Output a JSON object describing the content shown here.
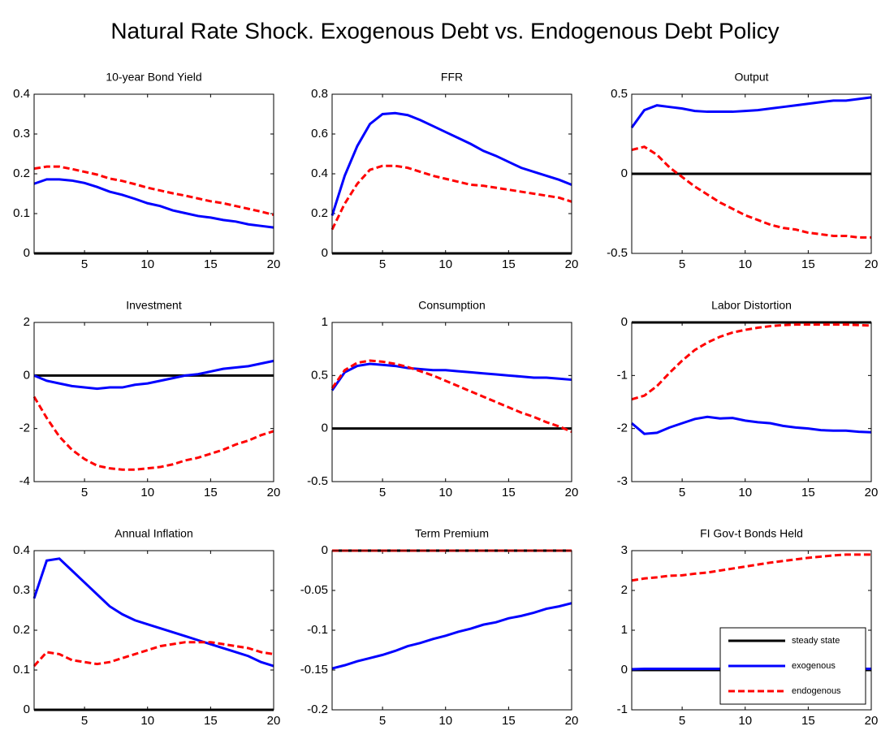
{
  "title": "Natural Rate Shock. Exogenous Debt vs. Endogenous Debt Policy",
  "chart_data": [
    {
      "type": "line",
      "title": "10-year Bond Yield",
      "x": [
        1,
        2,
        3,
        4,
        5,
        6,
        7,
        8,
        9,
        10,
        11,
        12,
        13,
        14,
        15,
        16,
        17,
        18,
        19,
        20
      ],
      "xlim": [
        1,
        20
      ],
      "xticks": [
        5,
        10,
        15,
        20
      ],
      "ylim": [
        0,
        0.4
      ],
      "yticks": [
        0,
        0.1,
        0.2,
        0.3,
        0.4
      ],
      "series": [
        {
          "color": "#000000",
          "style": "solid",
          "values": [
            0,
            0,
            0,
            0,
            0,
            0,
            0,
            0,
            0,
            0,
            0,
            0,
            0,
            0,
            0,
            0,
            0,
            0,
            0,
            0
          ]
        },
        {
          "color": "#0000ff",
          "style": "solid",
          "values": [
            0.175,
            0.186,
            0.186,
            0.183,
            0.177,
            0.167,
            0.155,
            0.147,
            0.137,
            0.126,
            0.119,
            0.108,
            0.101,
            0.094,
            0.09,
            0.084,
            0.08,
            0.073,
            0.069,
            0.065
          ]
        },
        {
          "color": "#ff0000",
          "style": "dashed",
          "values": [
            0.213,
            0.218,
            0.218,
            0.212,
            0.205,
            0.198,
            0.188,
            0.182,
            0.174,
            0.165,
            0.158,
            0.151,
            0.145,
            0.138,
            0.131,
            0.126,
            0.119,
            0.112,
            0.105,
            0.097
          ]
        }
      ]
    },
    {
      "type": "line",
      "title": "FFR",
      "x": [
        1,
        2,
        3,
        4,
        5,
        6,
        7,
        8,
        9,
        10,
        11,
        12,
        13,
        14,
        15,
        16,
        17,
        18,
        19,
        20
      ],
      "xlim": [
        1,
        20
      ],
      "xticks": [
        5,
        10,
        15,
        20
      ],
      "ylim": [
        0,
        0.8
      ],
      "yticks": [
        0,
        0.2,
        0.4,
        0.6,
        0.8
      ],
      "series": [
        {
          "color": "#000000",
          "style": "solid",
          "values": [
            0,
            0,
            0,
            0,
            0,
            0,
            0,
            0,
            0,
            0,
            0,
            0,
            0,
            0,
            0,
            0,
            0,
            0,
            0,
            0
          ]
        },
        {
          "color": "#0000ff",
          "style": "solid",
          "values": [
            0.19,
            0.39,
            0.54,
            0.65,
            0.7,
            0.705,
            0.695,
            0.67,
            0.64,
            0.61,
            0.58,
            0.55,
            0.515,
            0.49,
            0.46,
            0.43,
            0.41,
            0.39,
            0.37,
            0.345
          ]
        },
        {
          "color": "#ff0000",
          "style": "dashed",
          "values": [
            0.12,
            0.25,
            0.35,
            0.42,
            0.44,
            0.44,
            0.43,
            0.41,
            0.39,
            0.375,
            0.36,
            0.345,
            0.34,
            0.33,
            0.32,
            0.31,
            0.3,
            0.29,
            0.28,
            0.26
          ]
        }
      ]
    },
    {
      "type": "line",
      "title": "Output",
      "x": [
        1,
        2,
        3,
        4,
        5,
        6,
        7,
        8,
        9,
        10,
        11,
        12,
        13,
        14,
        15,
        16,
        17,
        18,
        19,
        20
      ],
      "xlim": [
        1,
        20
      ],
      "xticks": [
        5,
        10,
        15,
        20
      ],
      "ylim": [
        -0.5,
        0.5
      ],
      "yticks": [
        -0.5,
        0,
        0.5
      ],
      "series": [
        {
          "color": "#000000",
          "style": "solid",
          "values": [
            0,
            0,
            0,
            0,
            0,
            0,
            0,
            0,
            0,
            0,
            0,
            0,
            0,
            0,
            0,
            0,
            0,
            0,
            0,
            0
          ]
        },
        {
          "color": "#0000ff",
          "style": "solid",
          "values": [
            0.29,
            0.4,
            0.43,
            0.42,
            0.41,
            0.395,
            0.39,
            0.39,
            0.39,
            0.395,
            0.4,
            0.41,
            0.42,
            0.43,
            0.44,
            0.45,
            0.46,
            0.46,
            0.47,
            0.48
          ]
        },
        {
          "color": "#ff0000",
          "style": "dashed",
          "values": [
            0.15,
            0.17,
            0.12,
            0.04,
            -0.02,
            -0.08,
            -0.13,
            -0.18,
            -0.22,
            -0.26,
            -0.29,
            -0.32,
            -0.34,
            -0.35,
            -0.37,
            -0.38,
            -0.39,
            -0.39,
            -0.4,
            -0.4
          ]
        }
      ]
    },
    {
      "type": "line",
      "title": "Investment",
      "x": [
        1,
        2,
        3,
        4,
        5,
        6,
        7,
        8,
        9,
        10,
        11,
        12,
        13,
        14,
        15,
        16,
        17,
        18,
        19,
        20
      ],
      "xlim": [
        1,
        20
      ],
      "xticks": [
        5,
        10,
        15,
        20
      ],
      "ylim": [
        -4,
        2
      ],
      "yticks": [
        -4,
        -2,
        0,
        2
      ],
      "series": [
        {
          "color": "#000000",
          "style": "solid",
          "values": [
            0,
            0,
            0,
            0,
            0,
            0,
            0,
            0,
            0,
            0,
            0,
            0,
            0,
            0,
            0,
            0,
            0,
            0,
            0,
            0
          ]
        },
        {
          "color": "#0000ff",
          "style": "solid",
          "values": [
            0,
            -0.2,
            -0.3,
            -0.4,
            -0.45,
            -0.5,
            -0.45,
            -0.45,
            -0.35,
            -0.3,
            -0.2,
            -0.1,
            0,
            0.05,
            0.15,
            0.25,
            0.3,
            0.35,
            0.45,
            0.55
          ]
        },
        {
          "color": "#ff0000",
          "style": "dashed",
          "values": [
            -0.8,
            -1.6,
            -2.3,
            -2.8,
            -3.15,
            -3.4,
            -3.5,
            -3.55,
            -3.55,
            -3.5,
            -3.45,
            -3.35,
            -3.2,
            -3.1,
            -2.95,
            -2.8,
            -2.6,
            -2.45,
            -2.25,
            -2.1
          ]
        }
      ]
    },
    {
      "type": "line",
      "title": "Consumption",
      "x": [
        1,
        2,
        3,
        4,
        5,
        6,
        7,
        8,
        9,
        10,
        11,
        12,
        13,
        14,
        15,
        16,
        17,
        18,
        19,
        20
      ],
      "xlim": [
        1,
        20
      ],
      "xticks": [
        5,
        10,
        15,
        20
      ],
      "ylim": [
        -0.5,
        1
      ],
      "yticks": [
        -0.5,
        0,
        0.5,
        1
      ],
      "series": [
        {
          "color": "#000000",
          "style": "solid",
          "values": [
            0,
            0,
            0,
            0,
            0,
            0,
            0,
            0,
            0,
            0,
            0,
            0,
            0,
            0,
            0,
            0,
            0,
            0,
            0,
            0
          ]
        },
        {
          "color": "#0000ff",
          "style": "solid",
          "values": [
            0.36,
            0.53,
            0.59,
            0.61,
            0.6,
            0.59,
            0.57,
            0.56,
            0.55,
            0.55,
            0.54,
            0.53,
            0.52,
            0.51,
            0.5,
            0.49,
            0.48,
            0.48,
            0.47,
            0.46
          ]
        },
        {
          "color": "#ff0000",
          "style": "dashed",
          "values": [
            0.38,
            0.55,
            0.62,
            0.64,
            0.63,
            0.61,
            0.58,
            0.54,
            0.5,
            0.45,
            0.4,
            0.35,
            0.3,
            0.25,
            0.2,
            0.15,
            0.11,
            0.06,
            0.02,
            -0.03
          ]
        }
      ]
    },
    {
      "type": "line",
      "title": "Labor Distortion",
      "x": [
        1,
        2,
        3,
        4,
        5,
        6,
        7,
        8,
        9,
        10,
        11,
        12,
        13,
        14,
        15,
        16,
        17,
        18,
        19,
        20
      ],
      "xlim": [
        1,
        20
      ],
      "xticks": [
        5,
        10,
        15,
        20
      ],
      "ylim": [
        -3,
        0
      ],
      "yticks": [
        -3,
        -2,
        -1,
        0
      ],
      "series": [
        {
          "color": "#000000",
          "style": "solid",
          "values": [
            0,
            0,
            0,
            0,
            0,
            0,
            0,
            0,
            0,
            0,
            0,
            0,
            0,
            0,
            0,
            0,
            0,
            0,
            0,
            0
          ]
        },
        {
          "color": "#0000ff",
          "style": "solid",
          "values": [
            -1.9,
            -2.1,
            -2.08,
            -1.98,
            -1.9,
            -1.82,
            -1.78,
            -1.81,
            -1.8,
            -1.85,
            -1.88,
            -1.9,
            -1.95,
            -1.98,
            -2.0,
            -2.03,
            -2.04,
            -2.04,
            -2.06,
            -2.07
          ]
        },
        {
          "color": "#ff0000",
          "style": "dashed",
          "values": [
            -1.45,
            -1.38,
            -1.2,
            -0.95,
            -0.72,
            -0.52,
            -0.38,
            -0.27,
            -0.19,
            -0.14,
            -0.1,
            -0.07,
            -0.05,
            -0.04,
            -0.04,
            -0.04,
            -0.04,
            -0.04,
            -0.05,
            -0.06
          ]
        }
      ]
    },
    {
      "type": "line",
      "title": "Annual Inflation",
      "x": [
        1,
        2,
        3,
        4,
        5,
        6,
        7,
        8,
        9,
        10,
        11,
        12,
        13,
        14,
        15,
        16,
        17,
        18,
        19,
        20
      ],
      "xlim": [
        1,
        20
      ],
      "xticks": [
        5,
        10,
        15,
        20
      ],
      "ylim": [
        0,
        0.4
      ],
      "yticks": [
        0,
        0.1,
        0.2,
        0.3,
        0.4
      ],
      "series": [
        {
          "color": "#000000",
          "style": "solid",
          "values": [
            0,
            0,
            0,
            0,
            0,
            0,
            0,
            0,
            0,
            0,
            0,
            0,
            0,
            0,
            0,
            0,
            0,
            0,
            0,
            0
          ]
        },
        {
          "color": "#0000ff",
          "style": "solid",
          "values": [
            0.28,
            0.375,
            0.38,
            0.35,
            0.32,
            0.29,
            0.26,
            0.24,
            0.225,
            0.215,
            0.205,
            0.195,
            0.185,
            0.175,
            0.165,
            0.155,
            0.145,
            0.135,
            0.12,
            0.11
          ]
        },
        {
          "color": "#ff0000",
          "style": "dashed",
          "values": [
            0.11,
            0.145,
            0.14,
            0.125,
            0.12,
            0.115,
            0.12,
            0.13,
            0.14,
            0.15,
            0.16,
            0.165,
            0.17,
            0.17,
            0.17,
            0.165,
            0.16,
            0.155,
            0.145,
            0.14
          ]
        }
      ]
    },
    {
      "type": "line",
      "title": "Term Premium",
      "x": [
        1,
        2,
        3,
        4,
        5,
        6,
        7,
        8,
        9,
        10,
        11,
        12,
        13,
        14,
        15,
        16,
        17,
        18,
        19,
        20
      ],
      "xlim": [
        1,
        20
      ],
      "xticks": [
        5,
        10,
        15,
        20
      ],
      "ylim": [
        -0.2,
        0
      ],
      "yticks": [
        -0.2,
        -0.15,
        -0.1,
        -0.05,
        0
      ],
      "series": [
        {
          "color": "#000000",
          "style": "solid",
          "values": [
            0,
            0,
            0,
            0,
            0,
            0,
            0,
            0,
            0,
            0,
            0,
            0,
            0,
            0,
            0,
            0,
            0,
            0,
            0,
            0
          ]
        },
        {
          "color": "#0000ff",
          "style": "solid",
          "values": [
            -0.148,
            -0.144,
            -0.139,
            -0.135,
            -0.131,
            -0.126,
            -0.12,
            -0.116,
            -0.111,
            -0.107,
            -0.102,
            -0.098,
            -0.093,
            -0.09,
            -0.085,
            -0.082,
            -0.078,
            -0.073,
            -0.07,
            -0.066
          ]
        },
        {
          "color": "#ff0000",
          "style": "dashed",
          "values": [
            0,
            0,
            0,
            0,
            0,
            0,
            0,
            0,
            0,
            0,
            0,
            0,
            0,
            0,
            0,
            0,
            0,
            0,
            0,
            0
          ]
        }
      ]
    },
    {
      "type": "line",
      "title": "FI Gov-t Bonds Held",
      "x": [
        1,
        2,
        3,
        4,
        5,
        6,
        7,
        8,
        9,
        10,
        11,
        12,
        13,
        14,
        15,
        16,
        17,
        18,
        19,
        20
      ],
      "xlim": [
        1,
        20
      ],
      "xticks": [
        5,
        10,
        15,
        20
      ],
      "ylim": [
        -1,
        3
      ],
      "yticks": [
        -1,
        0,
        1,
        2,
        3
      ],
      "legend": "lower right",
      "series": [
        {
          "name": "steady state",
          "color": "#000000",
          "style": "solid",
          "values": [
            0,
            0,
            0,
            0,
            0,
            0,
            0,
            0,
            0,
            0,
            0,
            0,
            0,
            0,
            0,
            0,
            0,
            0,
            0,
            0
          ]
        },
        {
          "name": "exogenous",
          "color": "#0000ff",
          "style": "solid",
          "values": [
            0.02,
            0.03,
            0.03,
            0.03,
            0.03,
            0.03,
            0.03,
            0.03,
            0.03,
            0.03,
            0.03,
            0.03,
            0.03,
            0.03,
            0.03,
            0.03,
            0.03,
            0.03,
            0.03,
            0.03
          ]
        },
        {
          "name": "endogenous",
          "color": "#ff0000",
          "style": "dashed",
          "values": [
            2.25,
            2.3,
            2.33,
            2.37,
            2.38,
            2.42,
            2.45,
            2.5,
            2.55,
            2.6,
            2.65,
            2.7,
            2.74,
            2.78,
            2.82,
            2.85,
            2.88,
            2.9,
            2.9,
            2.9
          ]
        }
      ]
    }
  ]
}
